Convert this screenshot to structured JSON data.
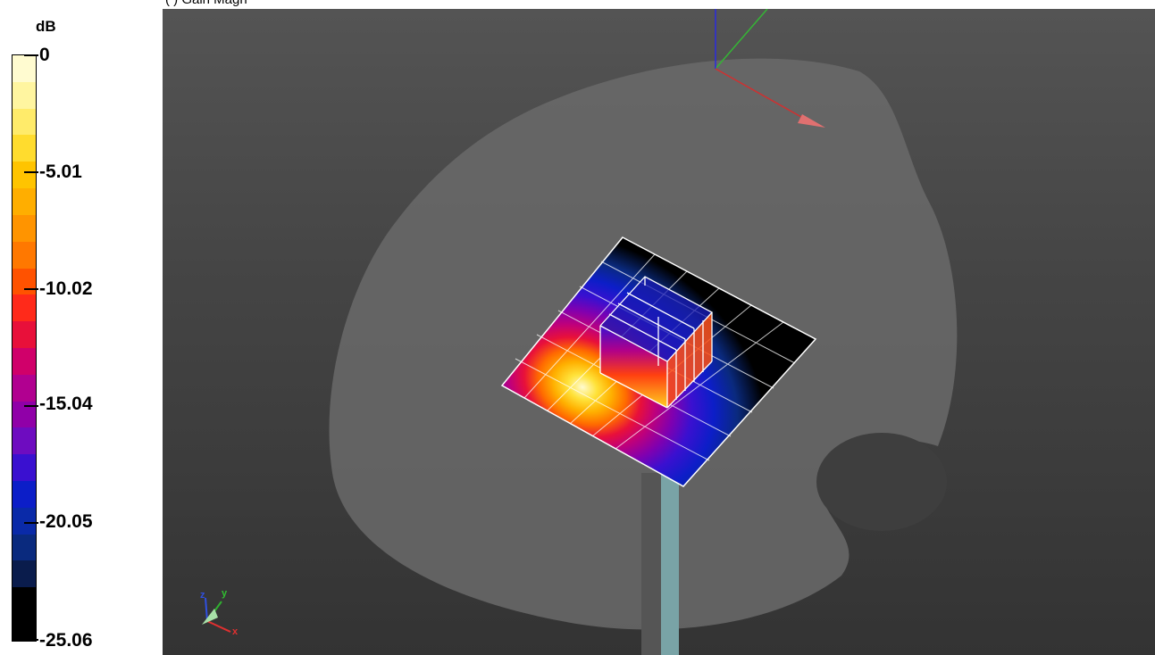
{
  "caption": "(                    ) Gain Magn",
  "legend": {
    "unit": "dB",
    "ticks": [
      "0",
      "-5.01",
      "-10.02",
      "-15.04",
      "-20.05",
      "-25.06"
    ],
    "bands": [
      "#fffbd0",
      "#fff5a0",
      "#ffeb6a",
      "#ffdc2e",
      "#ffc400",
      "#ffae00",
      "#ff9400",
      "#ff7800",
      "#ff5200",
      "#ff2a1a",
      "#e8103a",
      "#d0006a",
      "#b10090",
      "#9000a8",
      "#6e0cc0",
      "#3a10d0",
      "#0c1ec8",
      "#0a2aa8",
      "#0a2a7e",
      "#0a1c4c",
      "#000000",
      "#000000"
    ]
  },
  "viewport": {
    "axes_labels": {
      "x": "x",
      "y": "y",
      "z": "z"
    },
    "icons": [
      "global-axes-icon",
      "mini-axes-triad-icon"
    ]
  }
}
